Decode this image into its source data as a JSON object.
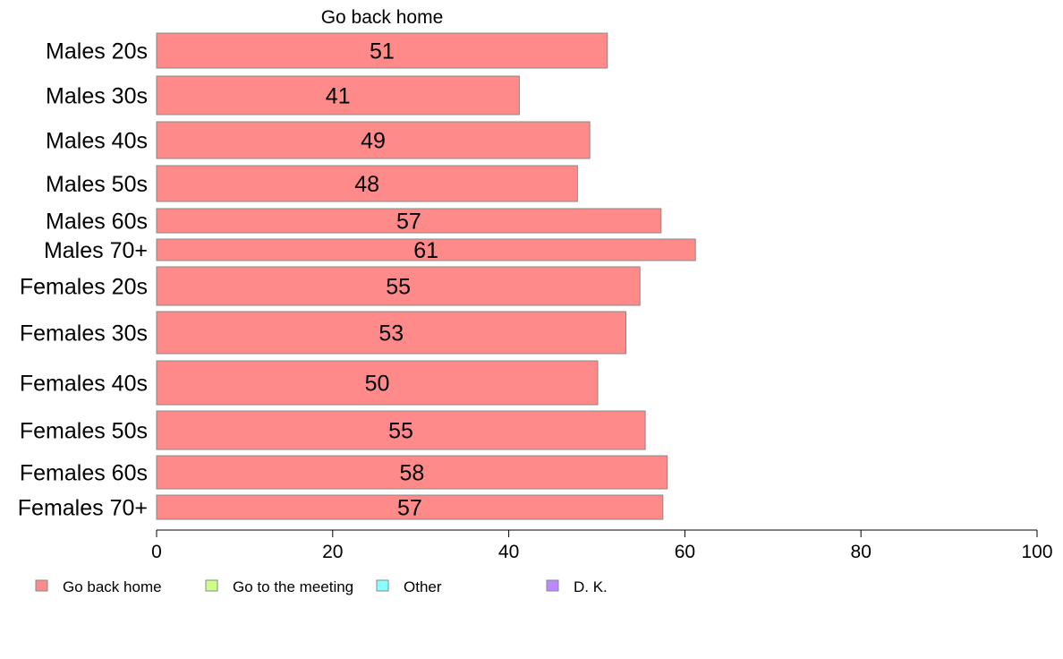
{
  "chart_data": {
    "type": "bar",
    "orientation": "horizontal",
    "title": "Go back home",
    "categories": [
      "Males 20s",
      "Males 30s",
      "Males 40s",
      "Males 50s",
      "Males 60s",
      "Males 70+",
      "Females 20s",
      "Females 30s",
      "Females 40s",
      "Females 50s",
      "Females 60s",
      "Females 70+"
    ],
    "series": [
      {
        "name": "Go back home",
        "color": "#ff8a8a",
        "values": [
          51.2,
          41.2,
          49.2,
          47.8,
          57.3,
          61.2,
          54.9,
          53.3,
          50.1,
          55.5,
          58.0,
          57.5
        ]
      }
    ],
    "value_labels": [
      "51",
      "41",
      "49",
      "48",
      "57",
      "61",
      "55",
      "53",
      "50",
      "55",
      "58",
      "57"
    ],
    "xlim": [
      0,
      100
    ],
    "xticks": [
      0,
      20,
      40,
      60,
      80,
      100
    ],
    "grid": false,
    "legend_position": "bottom",
    "legend": [
      {
        "label": "Go back home",
        "color": "#ff8a8a"
      },
      {
        "label": "Go to the meeting",
        "color": "#ccff88"
      },
      {
        "label": "Other",
        "color": "#88ffff"
      },
      {
        "label": "D. K.",
        "color": "#bb88ff"
      }
    ]
  }
}
